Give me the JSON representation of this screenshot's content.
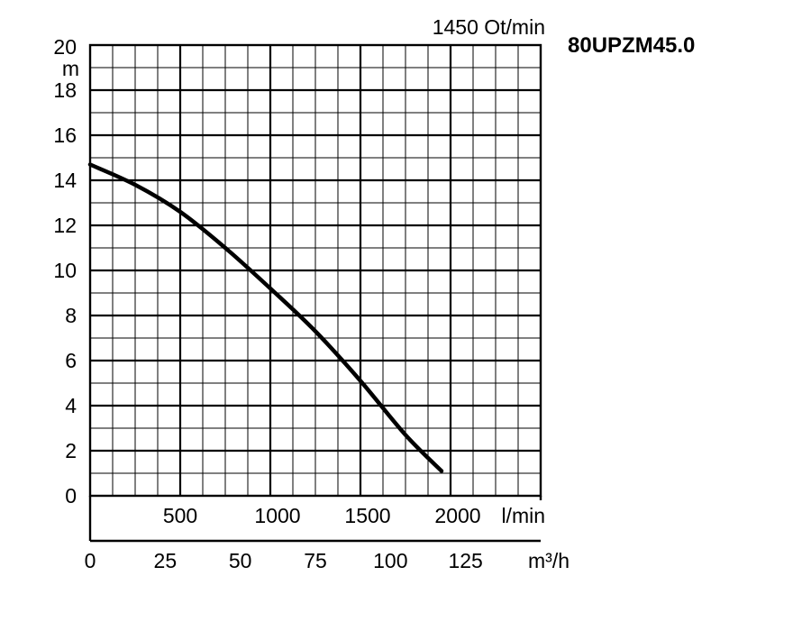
{
  "chart_data": {
    "type": "line",
    "title": "80UPZM45.0",
    "speed_label": "1450 Ot/min",
    "ylabel": "m",
    "ylim": [
      0,
      20
    ],
    "y_ticks": [
      "0",
      "2",
      "4",
      "6",
      "8",
      "10",
      "12",
      "14",
      "16",
      "18",
      "20"
    ],
    "x_lmin_unit": "l/min",
    "x_lmin_ticks": [
      "500",
      "1000",
      "1500",
      "2000"
    ],
    "x_m3h_unit": "m³/h",
    "x_m3h_ticks": [
      "0",
      "25",
      "50",
      "75",
      "100",
      "125"
    ],
    "xlim_lmin": [
      0,
      2500
    ],
    "grid": true,
    "series": [
      {
        "x_lmin": [
          0,
          250,
          500,
          750,
          1000,
          1250,
          1500,
          1750,
          1950
        ],
        "y_m": [
          14.7,
          13.8,
          12.6,
          11.0,
          9.2,
          7.3,
          5.1,
          2.7,
          1.1
        ]
      }
    ]
  }
}
